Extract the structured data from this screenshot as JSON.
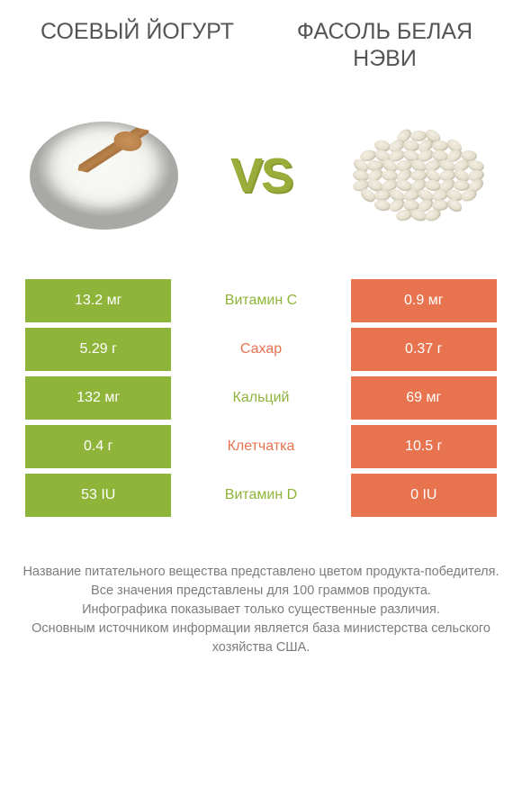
{
  "titles": {
    "left": "СОЕВЫЙ ЙОГУРТ",
    "right": "ФАСОЛЬ БЕЛАЯ НЭВИ"
  },
  "vs": {
    "v": "V",
    "s": "S"
  },
  "colors": {
    "green": "#8fb43a",
    "orange": "#e8734f",
    "text": "#555555",
    "footnote": "#7c7c7c",
    "white": "#ffffff"
  },
  "rows": [
    {
      "left": "13.2 мг",
      "center": "Витамин C",
      "right": "0.9 мг",
      "winner": "green"
    },
    {
      "left": "5.29 г",
      "center": "Сахар",
      "right": "0.37 г",
      "winner": "orange"
    },
    {
      "left": "132 мг",
      "center": "Кальций",
      "right": "69 мг",
      "winner": "green"
    },
    {
      "left": "0.4 г",
      "center": "Клетчатка",
      "right": "10.5 г",
      "winner": "orange"
    },
    {
      "left": "53 IU",
      "center": "Витамин D",
      "right": "0 IU",
      "winner": "green"
    }
  ],
  "footnote": {
    "l1": "Название питательного вещества представлено цветом продукта-победителя.",
    "l2": "Все значения представлены для 100 граммов продукта.",
    "l3": "Инфографика показывает только существенные различия.",
    "l4": "Основным источником информации является база министерства сельского хозяйства США."
  }
}
